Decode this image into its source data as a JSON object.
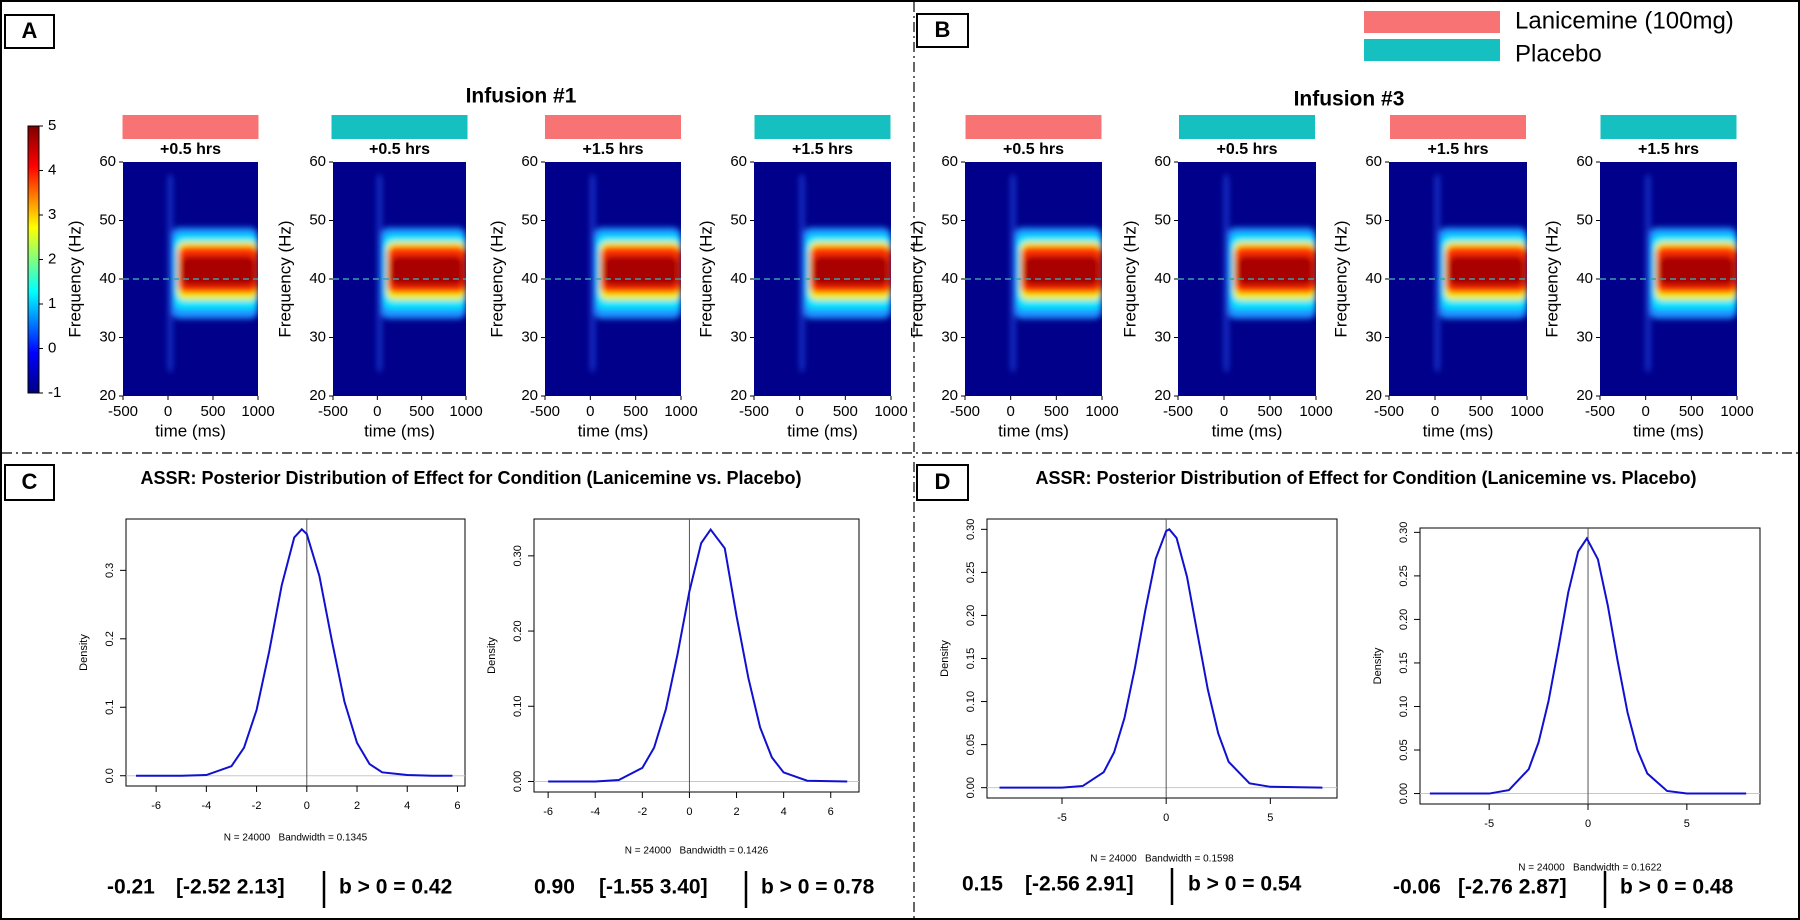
{
  "panel_labels": [
    "A",
    "B",
    "C",
    "D"
  ],
  "group_titles": [
    "Infusion #1",
    "Infusion #3"
  ],
  "section_titles": [
    "ASSR: Posterior Distribution of Effect for Condition (Lanicemine vs. Placebo)",
    "ASSR: Posterior Distribution of Effect for Condition (Lanicemine vs. Placebo)"
  ],
  "legend": [
    {
      "name": "Lanicemine (100mg)",
      "color": "#f87474"
    },
    {
      "name": "Placebo",
      "color": "#16c0c0"
    }
  ],
  "colorbar": {
    "lim": [
      -1,
      5
    ],
    "ticks": [
      5,
      4,
      3,
      2,
      1,
      0,
      -1
    ]
  },
  "chart_data": [
    {
      "type": "heatmap",
      "title": "+0.5 hrs",
      "color": "#f87474",
      "xlabel": "time (ms)",
      "ylabel": "Frequency (Hz)",
      "xlim": [
        -500,
        1000
      ],
      "ylim": [
        20,
        60
      ],
      "xticks": [
        -500,
        0,
        500,
        1000
      ],
      "yticks": [
        20,
        30,
        40,
        50,
        60
      ],
      "reference_lines": {
        "y": 40
      }
    },
    {
      "type": "heatmap",
      "title": "+0.5 hrs",
      "color": "#16c0c0",
      "xlabel": "time (ms)",
      "ylabel": "Frequency (Hz)",
      "xlim": [
        -500,
        1000
      ],
      "ylim": [
        20,
        60
      ],
      "xticks": [
        -500,
        0,
        500,
        1000
      ],
      "yticks": [
        20,
        30,
        40,
        50,
        60
      ],
      "reference_lines": {
        "y": 40
      }
    },
    {
      "type": "heatmap",
      "title": "+1.5 hrs",
      "color": "#f87474",
      "xlabel": "time (ms)",
      "ylabel": "Frequency (Hz)",
      "xlim": [
        -500,
        1000
      ],
      "ylim": [
        20,
        60
      ],
      "xticks": [
        -500,
        0,
        500,
        1000
      ],
      "yticks": [
        20,
        30,
        40,
        50,
        60
      ],
      "reference_lines": {
        "y": 40
      }
    },
    {
      "type": "heatmap",
      "title": "+1.5 hrs",
      "color": "#16c0c0",
      "xlabel": "time (ms)",
      "ylabel": "Frequency (Hz)",
      "xlim": [
        -500,
        1000
      ],
      "ylim": [
        20,
        60
      ],
      "xticks": [
        -500,
        0,
        500,
        1000
      ],
      "yticks": [
        20,
        30,
        40,
        50,
        60
      ],
      "reference_lines": {
        "y": 40
      }
    },
    {
      "type": "heatmap",
      "title": "+0.5 hrs",
      "color": "#f87474",
      "xlabel": "time (ms)",
      "ylabel": "Frequency (Hz)",
      "xlim": [
        -500,
        1000
      ],
      "ylim": [
        20,
        60
      ],
      "xticks": [
        -500,
        0,
        500,
        1000
      ],
      "yticks": [
        20,
        30,
        40,
        50,
        60
      ],
      "reference_lines": {
        "y": 40
      }
    },
    {
      "type": "heatmap",
      "title": "+0.5 hrs",
      "color": "#16c0c0",
      "xlabel": "time (ms)",
      "ylabel": "Frequency (Hz)",
      "xlim": [
        -500,
        1000
      ],
      "ylim": [
        20,
        60
      ],
      "xticks": [
        -500,
        0,
        500,
        1000
      ],
      "yticks": [
        20,
        30,
        40,
        50,
        60
      ],
      "reference_lines": {
        "y": 40
      }
    },
    {
      "type": "heatmap",
      "title": "+1.5 hrs",
      "color": "#f87474",
      "xlabel": "time (ms)",
      "ylabel": "Frequency (Hz)",
      "xlim": [
        -500,
        1000
      ],
      "ylim": [
        20,
        60
      ],
      "xticks": [
        -500,
        0,
        500,
        1000
      ],
      "yticks": [
        20,
        30,
        40,
        50,
        60
      ],
      "reference_lines": {
        "y": 40
      }
    },
    {
      "type": "heatmap",
      "title": "+1.5 hrs",
      "color": "#16c0c0",
      "xlabel": "time (ms)",
      "ylabel": "Frequency (Hz)",
      "xlim": [
        -500,
        1000
      ],
      "ylim": [
        20,
        60
      ],
      "xticks": [
        -500,
        0,
        500,
        1000
      ],
      "yticks": [
        20,
        30,
        40,
        50,
        60
      ],
      "reference_lines": {
        "y": 40
      }
    },
    {
      "type": "line",
      "color": "#1010d0",
      "xlabel": "N = 24000   Bandwidth = 0.1345",
      "ylabel": "Density",
      "x": [
        -6.8,
        -5,
        -4,
        -3,
        -2.5,
        -2,
        -1.5,
        -1,
        -0.5,
        -0.2,
        0,
        0.5,
        1,
        1.5,
        2,
        2.5,
        3,
        4,
        5,
        5.8
      ],
      "values": [
        0,
        0,
        0.001,
        0.014,
        0.041,
        0.096,
        0.181,
        0.278,
        0.348,
        0.36,
        0.353,
        0.292,
        0.197,
        0.108,
        0.048,
        0.017,
        0.005,
        0.001,
        0,
        0
      ],
      "xlim": [
        -7.2,
        6.3
      ],
      "ylim": [
        -0.015,
        0.375
      ],
      "xticks": [
        -6,
        -4,
        -2,
        0,
        2,
        4,
        6
      ],
      "yticks": [
        {
          "value": 0,
          "label": "0.0"
        },
        0.1,
        0.2,
        0.3
      ],
      "reference_lines": {
        "x": 0,
        "y": 0
      },
      "estimate": "-0.21",
      "interval": "[-2.52 2.13]",
      "probability": "b > 0 = 0.42"
    },
    {
      "type": "line",
      "color": "#1010d0",
      "xlabel": "N = 24000   Bandwidth = 0.1426",
      "ylabel": "Density",
      "x": [
        -6,
        -4,
        -3,
        -2,
        -1.5,
        -1,
        -0.5,
        0,
        0.5,
        0.9,
        1.5,
        2,
        2.5,
        3,
        3.5,
        4,
        5,
        6.7
      ],
      "values": [
        0,
        0,
        0.002,
        0.018,
        0.045,
        0.096,
        0.17,
        0.253,
        0.317,
        0.335,
        0.31,
        0.22,
        0.138,
        0.072,
        0.032,
        0.012,
        0.001,
        0
      ],
      "xlim": [
        -6.6,
        7.2
      ],
      "ylim": [
        -0.014,
        0.349
      ],
      "xticks": [
        -6,
        -4,
        -2,
        0,
        2,
        4,
        6
      ],
      "yticks": [
        {
          "value": 0,
          "label": "0.00"
        },
        {
          "value": 0.1,
          "label": "0.10"
        },
        {
          "value": 0.2,
          "label": "0.20"
        },
        {
          "value": 0.3,
          "label": "0.30"
        }
      ],
      "reference_lines": {
        "x": 0,
        "y": 0
      },
      "estimate": "0.90",
      "interval": "[-1.55 3.40]",
      "probability": "b > 0 = 0.78"
    },
    {
      "type": "line",
      "color": "#1010d0",
      "xlabel": "N = 24000   Bandwidth = 0.1598",
      "ylabel": "Density",
      "x": [
        -8,
        -5,
        -4,
        -3,
        -2.5,
        -2,
        -1.5,
        -1,
        -0.5,
        0,
        0.15,
        0.5,
        1,
        1.5,
        2,
        2.5,
        3,
        4,
        5,
        7.5
      ],
      "values": [
        0,
        0,
        0.002,
        0.018,
        0.041,
        0.081,
        0.139,
        0.206,
        0.266,
        0.298,
        0.3,
        0.29,
        0.245,
        0.179,
        0.114,
        0.063,
        0.03,
        0.005,
        0.001,
        0
      ],
      "xlim": [
        -8.6,
        8.2
      ],
      "ylim": [
        -0.012,
        0.312
      ],
      "xticks": [
        -5,
        0,
        5
      ],
      "yticks": [
        {
          "value": 0,
          "label": "0.00"
        },
        0.05,
        {
          "value": 0.1,
          "label": "0.10"
        },
        0.15,
        {
          "value": 0.2,
          "label": "0.20"
        },
        0.25,
        {
          "value": 0.3,
          "label": "0.30"
        }
      ],
      "reference_lines": {
        "x": 0,
        "y": 0
      },
      "estimate": "0.15",
      "interval": "[-2.56 2.91]",
      "probability": "b > 0 = 0.54"
    },
    {
      "type": "line",
      "color": "#1010d0",
      "xlabel": "N = 24000   Bandwidth = 0.1622",
      "ylabel": "Density",
      "x": [
        -8,
        -5,
        -4,
        -3,
        -2.5,
        -2,
        -1.5,
        -1,
        -0.5,
        -0.06,
        0.5,
        1,
        1.5,
        2,
        2.5,
        3,
        4,
        5,
        8
      ],
      "values": [
        0,
        0,
        0.004,
        0.028,
        0.059,
        0.106,
        0.167,
        0.231,
        0.278,
        0.293,
        0.269,
        0.216,
        0.152,
        0.093,
        0.05,
        0.023,
        0.003,
        0,
        0
      ],
      "xlim": [
        -8.5,
        8.7
      ],
      "ylim": [
        -0.012,
        0.305
      ],
      "xticks": [
        -5,
        0,
        5
      ],
      "yticks": [
        {
          "value": 0,
          "label": "0.00"
        },
        0.05,
        {
          "value": 0.1,
          "label": "0.10"
        },
        0.15,
        {
          "value": 0.2,
          "label": "0.20"
        },
        0.25,
        {
          "value": 0.3,
          "label": "0.30"
        }
      ],
      "reference_lines": {
        "x": 0,
        "y": 0
      },
      "estimate": "-0.06",
      "interval": "[-2.76 2.87]",
      "probability": "b > 0 = 0.48"
    }
  ]
}
